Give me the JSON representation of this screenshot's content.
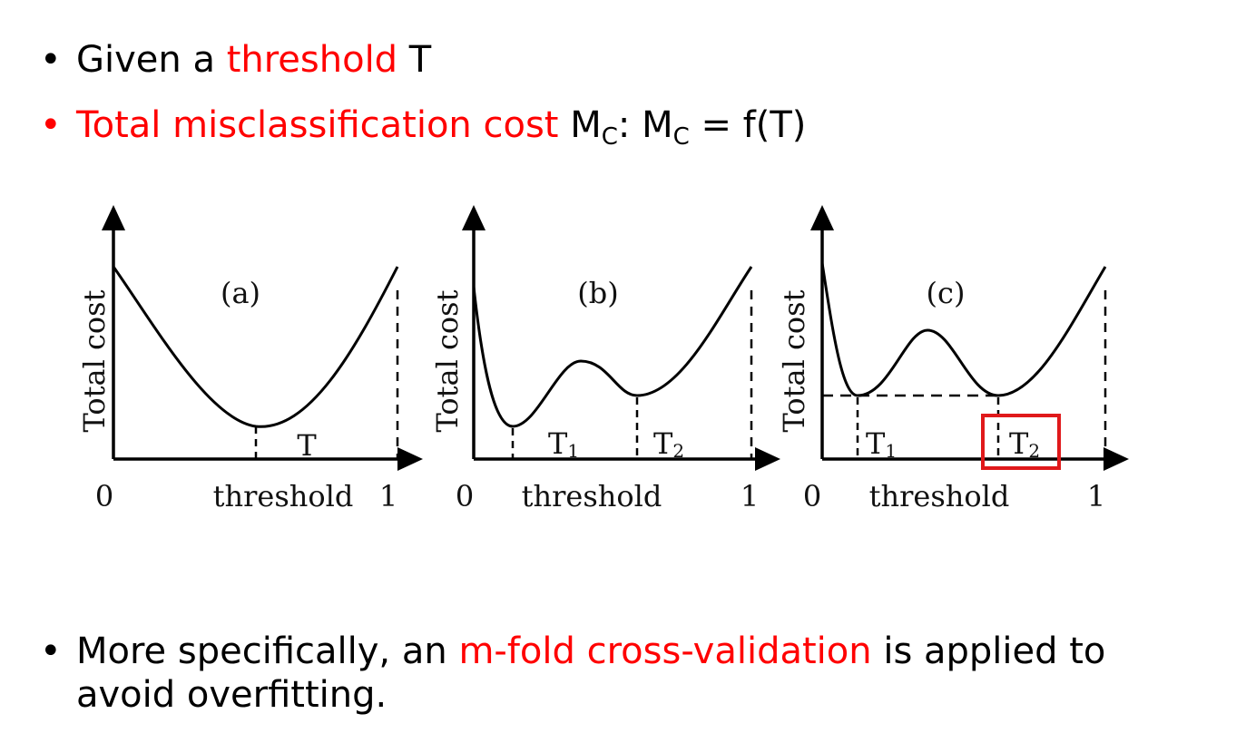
{
  "bullets": {
    "b1_dot": "•",
    "b1_pre": "Given a ",
    "b1_red": "threshold",
    "b1_post": " T",
    "b2_dot": "•",
    "b2_red": "Total misclassification cost",
    "b2_m1": " M",
    "b2_sub1": "C",
    "b2_mid": ": M",
    "b2_sub2": "C",
    "b2_post": " = f(T)",
    "b3_dot": "•",
    "b3_pre": "More specifically, an ",
    "b3_red": "m-fold cross-validation",
    "b3_post": " is applied to avoid overfitting."
  },
  "panels": [
    {
      "label": "(a)",
      "ylabel": "Total cost",
      "xlabel": "threshold",
      "x0": "0",
      "x1": "1",
      "mark1": "T"
    },
    {
      "label": "(b)",
      "ylabel": "Total cost",
      "xlabel": "threshold",
      "x0": "0",
      "x1": "1",
      "mark1": "T",
      "mark1_sub": "1",
      "mark2": "T",
      "mark2_sub": "2"
    },
    {
      "label": "(c)",
      "ylabel": "Total cost",
      "xlabel": "threshold",
      "x0": "0",
      "x1": "1",
      "mark1": "T",
      "mark1_sub": "1",
      "mark2": "T",
      "mark2_sub": "2"
    }
  ],
  "colors": {
    "accent": "#ff0000",
    "curve": "#000000",
    "highlight_box": "#e0191b"
  }
}
